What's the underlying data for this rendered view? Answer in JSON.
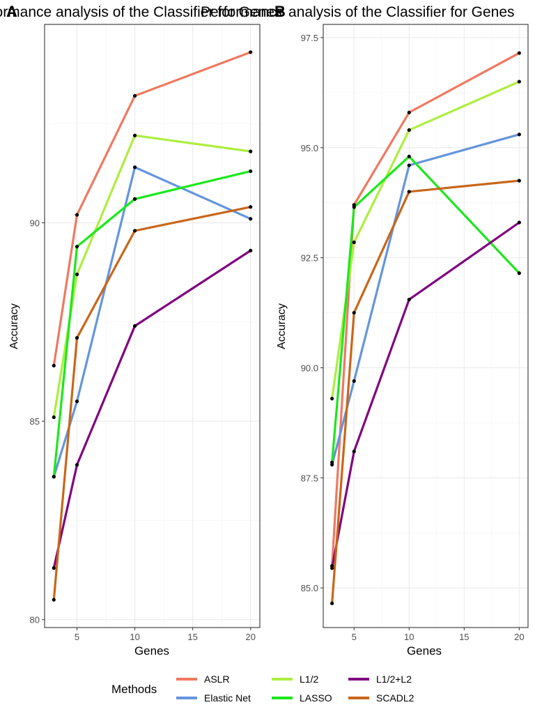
{
  "chart_data": [
    {
      "type": "line",
      "panel_label": "A",
      "title": "Performance analysis of the Classifier for Genes",
      "xlabel": "Genes",
      "ylabel": "Accuracy",
      "x": [
        3,
        5,
        10,
        20
      ],
      "xticks": [
        5,
        10,
        15,
        20
      ],
      "yticks": [
        80,
        85,
        90
      ],
      "xlim": [
        2.2,
        20.8
      ],
      "ylim": [
        79.8,
        95.0
      ],
      "grid": true,
      "series": [
        {
          "name": "ASLR",
          "color": "#F07860",
          "values": [
            86.4,
            90.2,
            93.2,
            94.3
          ]
        },
        {
          "name": "Elastic Net",
          "color": "#6495DD",
          "values": [
            83.6,
            85.5,
            91.4,
            90.1
          ]
        },
        {
          "name": "L1/2",
          "color": "#ADEE3E",
          "values": [
            85.1,
            88.7,
            92.2,
            91.8
          ]
        },
        {
          "name": "LASSO",
          "color": "#1BE81B",
          "values": [
            83.6,
            89.4,
            90.6,
            91.3
          ]
        },
        {
          "name": "L1/2+L2",
          "color": "#800080",
          "values": [
            81.3,
            83.9,
            87.4,
            89.3
          ]
        },
        {
          "name": "SCADL2",
          "color": "#C8661A",
          "values": [
            80.5,
            87.1,
            89.8,
            90.4
          ]
        }
      ]
    },
    {
      "type": "line",
      "panel_label": "B",
      "title": "Performance analysis of the Classifier for Genes",
      "xlabel": "Genes",
      "ylabel": "Accuracy",
      "x": [
        3,
        5,
        10,
        20
      ],
      "xticks": [
        5,
        10,
        15,
        20
      ],
      "yticks": [
        "85.0",
        "87.5",
        "90.0",
        "92.5",
        "95.0",
        "97.5"
      ],
      "xlim": [
        2.2,
        20.8
      ],
      "ylim": [
        84.1,
        97.8
      ],
      "grid": true,
      "series": [
        {
          "name": "ASLR",
          "color": "#F07860",
          "values": [
            85.5,
            93.7,
            95.8,
            97.15
          ]
        },
        {
          "name": "Elastic Net",
          "color": "#6495DD",
          "values": [
            87.8,
            89.7,
            94.6,
            95.3
          ]
        },
        {
          "name": "L1/2",
          "color": "#ADEE3E",
          "values": [
            89.3,
            92.85,
            95.4,
            96.5
          ]
        },
        {
          "name": "LASSO",
          "color": "#1BE81B",
          "values": [
            87.85,
            93.65,
            94.8,
            92.15
          ]
        },
        {
          "name": "L1/2+L2",
          "color": "#800080",
          "values": [
            85.45,
            88.1,
            91.55,
            93.3
          ]
        },
        {
          "name": "SCADL2",
          "color": "#C8661A",
          "values": [
            84.65,
            91.25,
            94.0,
            94.25
          ]
        }
      ]
    }
  ],
  "legend": {
    "title": "Methods",
    "items": [
      {
        "label": "ASLR",
        "color": "#F07860"
      },
      {
        "label": "Elastic Net",
        "color": "#6495DD"
      },
      {
        "label": "L1/2",
        "color": "#ADEE3E"
      },
      {
        "label": "LASSO",
        "color": "#1BE81B"
      },
      {
        "label": "L1/2+L2",
        "color": "#800080"
      },
      {
        "label": "SCADL2",
        "color": "#C8661A"
      }
    ]
  }
}
